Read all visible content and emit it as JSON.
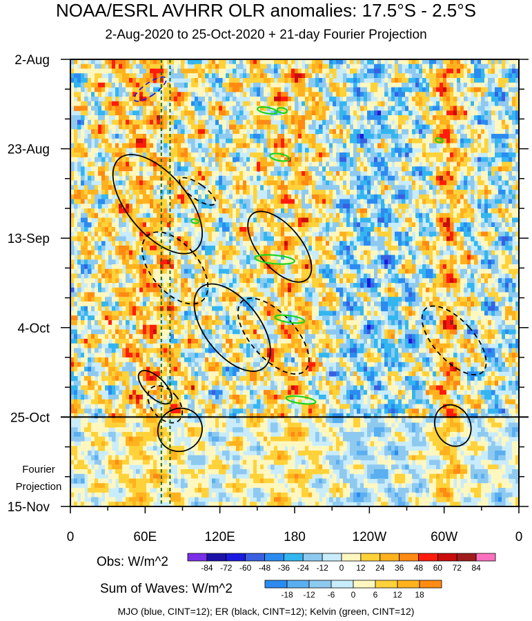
{
  "title": "NOAA/ESRL AVHRR OLR anomalies: 17.5°S - 2.5°S",
  "subtitle": "2-Aug-2020 to 25-Oct-2020 + 21-day Fourier Projection",
  "colors": {
    "obs": [
      "#7b2fe8",
      "#1c12a8",
      "#1a1ae0",
      "#3a5fe0",
      "#2b8bf0",
      "#33b6f0",
      "#8ec9f0",
      "#c8ecfb",
      "#fff7c0",
      "#ffd23a",
      "#ffb21e",
      "#ff8a14",
      "#ff1c0c",
      "#c90c0c",
      "#a01c1c",
      "#ff70c0"
    ],
    "waves": [
      "#2b8bf0",
      "#5aaff0",
      "#8ec9f0",
      "#c8ecfb",
      "#fff7c0",
      "#ffd23a",
      "#ffb21e",
      "#ff8a14"
    ],
    "mjo": "#1a1ae0",
    "er": "#000000",
    "kelvin": "#1bd41b",
    "dashed_lines": "#1a6a1a"
  },
  "chart_data": {
    "type": "heatmap",
    "title": "NOAA/ESRL AVHRR OLR anomalies: 17.5°S - 2.5°S",
    "x_ticks": [
      "0",
      "60E",
      "120E",
      "180",
      "120W",
      "60W",
      "0"
    ],
    "x_tick_degrees": [
      0,
      60,
      120,
      180,
      240,
      300,
      360
    ],
    "y_ticks": [
      "2-Aug",
      "23-Aug",
      "13-Sep",
      "4-Oct",
      "25-Oct",
      "15-Nov"
    ],
    "y_tick_days": [
      0,
      21,
      42,
      63,
      84,
      105
    ],
    "observation_end_day": 84,
    "projection_label": [
      "Fourier",
      "Projection"
    ],
    "reference_longitudes_deg": [
      73,
      80
    ],
    "obs_colorbar": {
      "label": "Obs: W/m^2",
      "ticks": [
        "-84",
        "-72",
        "-60",
        "-48",
        "-36",
        "-24",
        "-12",
        "0",
        "12",
        "24",
        "36",
        "48",
        "60",
        "72",
        "84"
      ]
    },
    "waves_colorbar": {
      "label": "Sum of Waves: W/m^2",
      "ticks": [
        "-18",
        "-12",
        "-6",
        "0",
        "6",
        "12",
        "18"
      ]
    },
    "contours": [
      {
        "type": "MJO",
        "sign": "negative",
        "lon": 64,
        "day": 7,
        "len_lon": 5,
        "len_day": 4.5,
        "angle": 55
      },
      {
        "type": "ER",
        "sign": "positive",
        "lon": 70,
        "day": 34,
        "len_lon": 24,
        "len_day": 14,
        "angle": -40
      },
      {
        "type": "ER",
        "sign": "negative",
        "lon": 102,
        "day": 31,
        "len_lon": 6,
        "len_day": 5,
        "angle": -55
      },
      {
        "type": "ER",
        "sign": "negative",
        "lon": 84,
        "day": 49,
        "len_lon": 19,
        "len_day": 10,
        "angle": -40
      },
      {
        "type": "ER",
        "sign": "positive",
        "lon": 168,
        "day": 44,
        "len_lon": 17,
        "len_day": 10,
        "angle": -40
      },
      {
        "type": "ER",
        "sign": "positive",
        "lon": 130,
        "day": 63,
        "len_lon": 22,
        "len_day": 12,
        "angle": -38
      },
      {
        "type": "ER",
        "sign": "negative",
        "lon": 163,
        "day": 65,
        "len_lon": 18,
        "len_day": 11,
        "angle": -42
      },
      {
        "type": "ER",
        "sign": "positive",
        "lon": 68,
        "day": 77,
        "len_lon": 8,
        "len_day": 5,
        "angle": -45
      },
      {
        "type": "ER",
        "sign": "negative",
        "lon": 76,
        "day": 81,
        "len_lon": 11,
        "len_day": 5,
        "angle": -40
      },
      {
        "type": "ER",
        "sign": "positive",
        "lon": 88,
        "day": 87,
        "len_lon": 18,
        "len_day": 5,
        "angle": -30
      },
      {
        "type": "ER",
        "sign": "negative",
        "lon": 308,
        "day": 66,
        "len_lon": 16,
        "len_day": 10,
        "angle": -42
      },
      {
        "type": "ER",
        "sign": "positive",
        "lon": 307,
        "day": 86,
        "len_lon": 14,
        "len_day": 5,
        "angle": -25
      },
      {
        "type": "Kelvin",
        "sign": "positive",
        "lon": 158,
        "day": 12,
        "len_lon": 8,
        "len_day": 0.7,
        "angle": 10
      },
      {
        "type": "Kelvin",
        "sign": "positive",
        "lon": 170,
        "day": 12,
        "len_lon": 4,
        "len_day": 0.6,
        "angle": 10
      },
      {
        "type": "Kelvin",
        "sign": "positive",
        "lon": 168,
        "day": 23,
        "len_lon": 8,
        "len_day": 0.8,
        "angle": 10
      },
      {
        "type": "Kelvin",
        "sign": "positive",
        "lon": 164,
        "day": 47,
        "len_lon": 16,
        "len_day": 1.0,
        "angle": 5
      },
      {
        "type": "Kelvin",
        "sign": "positive",
        "lon": 176,
        "day": 61,
        "len_lon": 12,
        "len_day": 0.8,
        "angle": 8
      },
      {
        "type": "Kelvin",
        "sign": "positive",
        "lon": 185,
        "day": 80,
        "len_lon": 12,
        "len_day": 0.8,
        "angle": 8
      },
      {
        "type": "Kelvin",
        "sign": "positive",
        "lon": 100,
        "day": 38,
        "len_lon": 3,
        "len_day": 0.5,
        "angle": 10
      },
      {
        "type": "Kelvin",
        "sign": "positive",
        "lon": 296,
        "day": 19,
        "len_lon": 3,
        "len_day": 0.5,
        "angle": 10
      }
    ]
  },
  "footnote": "MJO (blue, CINT=12); ER (black, CINT=12); Kelvin (green, CINT=12)"
}
